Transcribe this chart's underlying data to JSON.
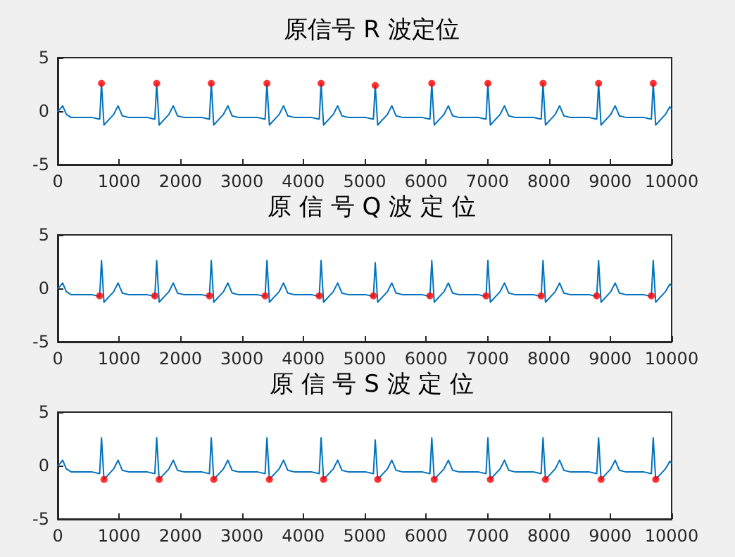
{
  "chart_data": [
    {
      "type": "line",
      "title": "原信号 R 波定位",
      "xlim": [
        0,
        10000
      ],
      "ylim": [
        -5,
        5
      ],
      "xticks": [
        0,
        1000,
        2000,
        3000,
        4000,
        5000,
        6000,
        7000,
        8000,
        9000,
        10000
      ],
      "yticks": [
        -5,
        0,
        5
      ],
      "grid": false,
      "series": [
        {
          "type": "line",
          "color": "#0072bd",
          "x": [
            0,
            40,
            80,
            140,
            220,
            563,
            683,
            713,
            753,
            833,
            913,
            983,
            1053,
            1163,
            1462,
            1582,
            1612,
            1652,
            1732,
            1812,
            1882,
            1952,
            2062,
            2351,
            2471,
            2501,
            2541,
            2621,
            2701,
            2771,
            2841,
            2951,
            3258,
            3378,
            3408,
            3448,
            3528,
            3608,
            3678,
            3748,
            3858,
            4140,
            4260,
            4290,
            4330,
            4410,
            4490,
            4560,
            4630,
            4740,
            5022,
            5142,
            5172,
            5212,
            5292,
            5372,
            5442,
            5512,
            5622,
            5943,
            6063,
            6093,
            6133,
            6213,
            6293,
            6363,
            6433,
            6543,
            6857,
            6977,
            7007,
            7047,
            7127,
            7207,
            7277,
            7347,
            7457,
            7755,
            7875,
            7905,
            7945,
            8025,
            8105,
            8175,
            8245,
            8355,
            8660,
            8780,
            8810,
            8850,
            8930,
            9010,
            9080,
            9150,
            9260,
            9550,
            9670,
            9700,
            9740,
            9820,
            9900,
            9970,
            10000
          ],
          "values": [
            0,
            0.2,
            0.5,
            -0.3,
            -0.6,
            -0.6,
            -0.75,
            2.6,
            -1.3,
            -0.8,
            -0.3,
            0.5,
            -0.45,
            -0.6,
            -0.6,
            -0.75,
            2.6,
            -1.3,
            -0.8,
            -0.3,
            0.5,
            -0.45,
            -0.6,
            -0.6,
            -0.75,
            2.6,
            -1.3,
            -0.8,
            -0.3,
            0.5,
            -0.45,
            -0.6,
            -0.6,
            -0.75,
            2.6,
            -1.3,
            -0.8,
            -0.3,
            0.5,
            -0.45,
            -0.6,
            -0.6,
            -0.75,
            2.6,
            -1.3,
            -0.8,
            -0.3,
            0.5,
            -0.45,
            -0.6,
            -0.6,
            -0.75,
            2.4,
            -1.3,
            -0.8,
            -0.3,
            0.5,
            -0.45,
            -0.6,
            -0.6,
            -0.75,
            2.6,
            -1.3,
            -0.8,
            -0.3,
            0.5,
            -0.45,
            -0.6,
            -0.6,
            -0.75,
            2.6,
            -1.3,
            -0.8,
            -0.3,
            0.5,
            -0.45,
            -0.6,
            -0.6,
            -0.75,
            2.6,
            -1.3,
            -0.8,
            -0.3,
            0.5,
            -0.45,
            -0.6,
            -0.6,
            -0.75,
            2.6,
            -1.3,
            -0.8,
            -0.3,
            0.5,
            -0.45,
            -0.6,
            -0.6,
            -0.75,
            2.6,
            -1.3,
            -0.8,
            -0.3,
            0.4,
            0.2
          ]
        },
        {
          "type": "scatter",
          "color": "#ff0000",
          "marker": "circle",
          "x": [
            713,
            1612,
            2501,
            3408,
            4290,
            5172,
            6093,
            7007,
            7905,
            8810,
            9700
          ],
          "values": [
            2.6,
            2.6,
            2.6,
            2.6,
            2.6,
            2.4,
            2.6,
            2.6,
            2.6,
            2.6,
            2.6
          ]
        }
      ]
    },
    {
      "type": "line",
      "title": "原 信 号 Q 波 定 位",
      "xlim": [
        0,
        10000
      ],
      "ylim": [
        -5,
        5
      ],
      "xticks": [
        0,
        1000,
        2000,
        3000,
        4000,
        5000,
        6000,
        7000,
        8000,
        9000,
        10000
      ],
      "yticks": [
        -5,
        0,
        5
      ],
      "grid": false,
      "series": [
        {
          "type": "line",
          "color": "#0072bd",
          "x": [
            0,
            40,
            80,
            140,
            220,
            563,
            683,
            713,
            753,
            833,
            913,
            983,
            1053,
            1163,
            1462,
            1582,
            1612,
            1652,
            1732,
            1812,
            1882,
            1952,
            2062,
            2351,
            2471,
            2501,
            2541,
            2621,
            2701,
            2771,
            2841,
            2951,
            3258,
            3378,
            3408,
            3448,
            3528,
            3608,
            3678,
            3748,
            3858,
            4140,
            4260,
            4290,
            4330,
            4410,
            4490,
            4560,
            4630,
            4740,
            5022,
            5142,
            5172,
            5212,
            5292,
            5372,
            5442,
            5512,
            5622,
            5943,
            6063,
            6093,
            6133,
            6213,
            6293,
            6363,
            6433,
            6543,
            6857,
            6977,
            7007,
            7047,
            7127,
            7207,
            7277,
            7347,
            7457,
            7755,
            7875,
            7905,
            7945,
            8025,
            8105,
            8175,
            8245,
            8355,
            8660,
            8780,
            8810,
            8850,
            8930,
            9010,
            9080,
            9150,
            9260,
            9550,
            9670,
            9700,
            9740,
            9820,
            9900,
            9970,
            10000
          ],
          "values": [
            0,
            0.2,
            0.5,
            -0.3,
            -0.6,
            -0.6,
            -0.75,
            2.6,
            -1.3,
            -0.8,
            -0.3,
            0.5,
            -0.45,
            -0.6,
            -0.6,
            -0.75,
            2.6,
            -1.3,
            -0.8,
            -0.3,
            0.5,
            -0.45,
            -0.6,
            -0.6,
            -0.75,
            2.6,
            -1.3,
            -0.8,
            -0.3,
            0.5,
            -0.45,
            -0.6,
            -0.6,
            -0.75,
            2.6,
            -1.3,
            -0.8,
            -0.3,
            0.5,
            -0.45,
            -0.6,
            -0.6,
            -0.75,
            2.6,
            -1.3,
            -0.8,
            -0.3,
            0.5,
            -0.45,
            -0.6,
            -0.6,
            -0.75,
            2.4,
            -1.3,
            -0.8,
            -0.3,
            0.5,
            -0.45,
            -0.6,
            -0.6,
            -0.75,
            2.6,
            -1.3,
            -0.8,
            -0.3,
            0.5,
            -0.45,
            -0.6,
            -0.6,
            -0.75,
            2.6,
            -1.3,
            -0.8,
            -0.3,
            0.5,
            -0.45,
            -0.6,
            -0.6,
            -0.75,
            2.6,
            -1.3,
            -0.8,
            -0.3,
            0.5,
            -0.45,
            -0.6,
            -0.6,
            -0.75,
            2.6,
            -1.3,
            -0.8,
            -0.3,
            0.5,
            -0.45,
            -0.6,
            -0.6,
            -0.75,
            2.6,
            -1.3,
            -0.8,
            -0.3,
            0.4,
            0.2
          ]
        },
        {
          "type": "scatter",
          "color": "#ff0000",
          "marker": "circle",
          "x": [
            683,
            1582,
            2471,
            3378,
            4260,
            5142,
            6063,
            6977,
            7875,
            8780,
            9670
          ],
          "values": [
            -0.7,
            -0.7,
            -0.7,
            -0.7,
            -0.7,
            -0.7,
            -0.7,
            -0.7,
            -0.7,
            -0.7,
            -0.7
          ]
        }
      ]
    },
    {
      "type": "line",
      "title": "原 信 号 S 波 定 位",
      "xlim": [
        0,
        10000
      ],
      "ylim": [
        -5,
        5
      ],
      "xticks": [
        0,
        1000,
        2000,
        3000,
        4000,
        5000,
        6000,
        7000,
        8000,
        9000,
        10000
      ],
      "yticks": [
        -5,
        0,
        5
      ],
      "grid": false,
      "series": [
        {
          "type": "line",
          "color": "#0072bd",
          "x": [
            0,
            40,
            80,
            140,
            220,
            563,
            683,
            713,
            753,
            833,
            913,
            983,
            1053,
            1163,
            1462,
            1582,
            1612,
            1652,
            1732,
            1812,
            1882,
            1952,
            2062,
            2351,
            2471,
            2501,
            2541,
            2621,
            2701,
            2771,
            2841,
            2951,
            3258,
            3378,
            3408,
            3448,
            3528,
            3608,
            3678,
            3748,
            3858,
            4140,
            4260,
            4290,
            4330,
            4410,
            4490,
            4560,
            4630,
            4740,
            5022,
            5142,
            5172,
            5212,
            5292,
            5372,
            5442,
            5512,
            5622,
            5943,
            6063,
            6093,
            6133,
            6213,
            6293,
            6363,
            6433,
            6543,
            6857,
            6977,
            7007,
            7047,
            7127,
            7207,
            7277,
            7347,
            7457,
            7755,
            7875,
            7905,
            7945,
            8025,
            8105,
            8175,
            8245,
            8355,
            8660,
            8780,
            8810,
            8850,
            8930,
            9010,
            9080,
            9150,
            9260,
            9550,
            9670,
            9700,
            9740,
            9820,
            9900,
            9970,
            10000
          ],
          "values": [
            0,
            0.2,
            0.5,
            -0.3,
            -0.6,
            -0.6,
            -0.75,
            2.6,
            -1.3,
            -0.8,
            -0.3,
            0.5,
            -0.45,
            -0.6,
            -0.6,
            -0.75,
            2.6,
            -1.3,
            -0.8,
            -0.3,
            0.5,
            -0.45,
            -0.6,
            -0.6,
            -0.75,
            2.6,
            -1.3,
            -0.8,
            -0.3,
            0.5,
            -0.45,
            -0.6,
            -0.6,
            -0.75,
            2.6,
            -1.3,
            -0.8,
            -0.3,
            0.5,
            -0.45,
            -0.6,
            -0.6,
            -0.75,
            2.6,
            -1.3,
            -0.8,
            -0.3,
            0.5,
            -0.45,
            -0.6,
            -0.6,
            -0.75,
            2.4,
            -1.3,
            -0.8,
            -0.3,
            0.5,
            -0.45,
            -0.6,
            -0.6,
            -0.75,
            2.6,
            -1.3,
            -0.8,
            -0.3,
            0.5,
            -0.45,
            -0.6,
            -0.6,
            -0.75,
            2.6,
            -1.3,
            -0.8,
            -0.3,
            0.5,
            -0.45,
            -0.6,
            -0.6,
            -0.75,
            2.6,
            -1.3,
            -0.8,
            -0.3,
            0.5,
            -0.45,
            -0.6,
            -0.6,
            -0.75,
            2.6,
            -1.3,
            -0.8,
            -0.3,
            0.5,
            -0.45,
            -0.6,
            -0.6,
            -0.75,
            2.6,
            -1.3,
            -0.8,
            -0.3,
            0.4,
            0.2
          ]
        },
        {
          "type": "scatter",
          "color": "#ff0000",
          "marker": "circle",
          "x": [
            753,
            1652,
            2541,
            3448,
            4330,
            5212,
            6133,
            7047,
            7945,
            8850,
            9740
          ],
          "values": [
            -1.3,
            -1.3,
            -1.3,
            -1.3,
            -1.3,
            -1.3,
            -1.3,
            -1.3,
            -1.3,
            -1.3,
            -1.3
          ]
        }
      ]
    }
  ]
}
